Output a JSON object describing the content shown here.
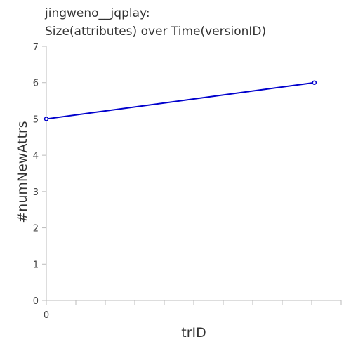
{
  "chart_data": {
    "type": "line",
    "title": [
      "jingweno__jqplay:",
      "Size(attributes) over Time(versionID)"
    ],
    "xlabel": "trID",
    "ylabel": "#numNewAttrs",
    "x_ticks": [
      "0"
    ],
    "y_ticks": [
      0,
      1,
      2,
      3,
      4,
      5,
      6,
      7
    ],
    "ylim": [
      0,
      7
    ],
    "xlim": [
      0,
      1.1
    ],
    "grid": false,
    "series": [
      {
        "color": "#0000cc",
        "points": [
          {
            "x": 0,
            "y": 5
          },
          {
            "x": 1,
            "y": 6
          }
        ]
      }
    ]
  }
}
